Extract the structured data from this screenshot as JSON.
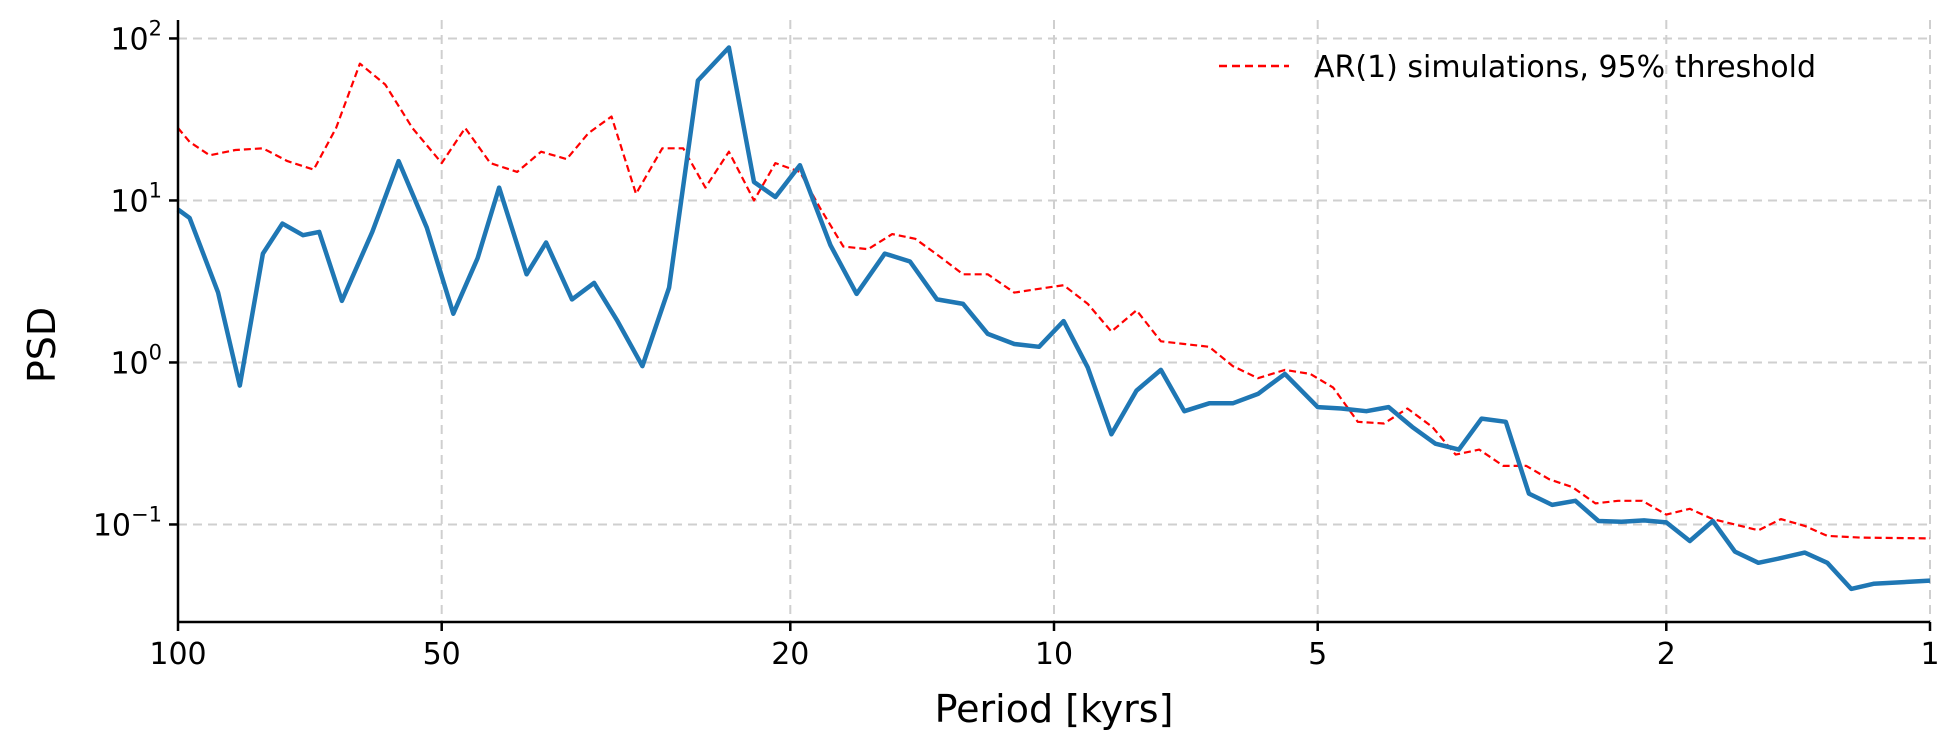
{
  "chart_data": {
    "type": "line",
    "xlabel": "Period [kyrs]",
    "ylabel": "PSD",
    "x_scale": "log",
    "x_reversed": true,
    "y_scale": "log",
    "xlim": [
      100,
      1
    ],
    "ylim": [
      0.025,
      130
    ],
    "x_ticks": [
      {
        "value": 100,
        "label": "100"
      },
      {
        "value": 50,
        "label": "50"
      },
      {
        "value": 20,
        "label": "20"
      },
      {
        "value": 10,
        "label": "10"
      },
      {
        "value": 5,
        "label": "5"
      },
      {
        "value": 2,
        "label": "2"
      },
      {
        "value": 1,
        "label": "1"
      }
    ],
    "y_ticks": [
      {
        "value": 100,
        "base": "10",
        "exp": "2"
      },
      {
        "value": 10,
        "base": "10",
        "exp": "1"
      },
      {
        "value": 1,
        "base": "10",
        "exp": "0"
      },
      {
        "value": 0.1,
        "base": "10",
        "exp": "−1"
      }
    ],
    "grid": true,
    "legend_position": "top-right",
    "series": [
      {
        "key": "psd",
        "color": "#1f77b4",
        "style": "solid",
        "points": [
          [
            100,
            8.8
          ],
          [
            97,
            7.8
          ],
          [
            90,
            2.7
          ],
          [
            85,
            0.72
          ],
          [
            80,
            4.7
          ],
          [
            76,
            7.2
          ],
          [
            72,
            6.1
          ],
          [
            69,
            6.4
          ],
          [
            65,
            2.4
          ],
          [
            60,
            6.4
          ],
          [
            56,
            17.5
          ],
          [
            52,
            6.8
          ],
          [
            48.5,
            2.0
          ],
          [
            45.5,
            4.4
          ],
          [
            43,
            12.0
          ],
          [
            40,
            3.5
          ],
          [
            38,
            5.5
          ],
          [
            35.5,
            2.45
          ],
          [
            33.5,
            3.1
          ],
          [
            31.5,
            1.8
          ],
          [
            29.5,
            0.95
          ],
          [
            27.5,
            2.9
          ],
          [
            25.5,
            55
          ],
          [
            23.5,
            88
          ],
          [
            22,
            13
          ],
          [
            20.8,
            10.5
          ],
          [
            19.5,
            16.5
          ],
          [
            18,
            5.3
          ],
          [
            16.8,
            2.65
          ],
          [
            15.6,
            4.7
          ],
          [
            14.6,
            4.2
          ],
          [
            13.6,
            2.45
          ],
          [
            12.7,
            2.3
          ],
          [
            11.9,
            1.5
          ],
          [
            11.1,
            1.3
          ],
          [
            10.4,
            1.25
          ],
          [
            9.75,
            1.8
          ],
          [
            9.15,
            0.93
          ],
          [
            8.6,
            0.36
          ],
          [
            8.05,
            0.67
          ],
          [
            7.55,
            0.9
          ],
          [
            7.1,
            0.5
          ],
          [
            6.65,
            0.56
          ],
          [
            6.25,
            0.56
          ],
          [
            5.85,
            0.64
          ],
          [
            5.45,
            0.85
          ],
          [
            5.0,
            0.53
          ],
          [
            4.7,
            0.52
          ],
          [
            4.4,
            0.5
          ],
          [
            4.15,
            0.53
          ],
          [
            3.9,
            0.4
          ],
          [
            3.67,
            0.315
          ],
          [
            3.45,
            0.29
          ],
          [
            3.25,
            0.45
          ],
          [
            3.05,
            0.43
          ],
          [
            2.87,
            0.155
          ],
          [
            2.7,
            0.132
          ],
          [
            2.54,
            0.14
          ],
          [
            2.39,
            0.105
          ],
          [
            2.25,
            0.104
          ],
          [
            2.12,
            0.106
          ],
          [
            2.0,
            0.103
          ],
          [
            1.88,
            0.079
          ],
          [
            1.77,
            0.105
          ],
          [
            1.67,
            0.068
          ],
          [
            1.57,
            0.058
          ],
          [
            1.48,
            0.062
          ],
          [
            1.39,
            0.067
          ],
          [
            1.31,
            0.058
          ],
          [
            1.23,
            0.04
          ],
          [
            1.16,
            0.043
          ],
          [
            1.0,
            0.045
          ]
        ]
      },
      {
        "key": "ar1",
        "name": "AR(1) simulations, 95% threshold",
        "color": "#ff0000",
        "style": "dashed",
        "points": [
          [
            100,
            28
          ],
          [
            97,
            23
          ],
          [
            92,
            19
          ],
          [
            86,
            20.5
          ],
          [
            80,
            21
          ],
          [
            75,
            17.5
          ],
          [
            70,
            15.5
          ],
          [
            66,
            28
          ],
          [
            62,
            70
          ],
          [
            58,
            52
          ],
          [
            54,
            28
          ],
          [
            50,
            17
          ],
          [
            47,
            28
          ],
          [
            44,
            17
          ],
          [
            41,
            15
          ],
          [
            38.5,
            20
          ],
          [
            36,
            18
          ],
          [
            34,
            26
          ],
          [
            32,
            33
          ],
          [
            30,
            11
          ],
          [
            28,
            21
          ],
          [
            26.5,
            21
          ],
          [
            25,
            12
          ],
          [
            23.5,
            20
          ],
          [
            22,
            10
          ],
          [
            20.8,
            17
          ],
          [
            19.5,
            15
          ],
          [
            18.5,
            9
          ],
          [
            17.4,
            5.2
          ],
          [
            16.3,
            5
          ],
          [
            15.3,
            6.2
          ],
          [
            14.4,
            5.8
          ],
          [
            13.5,
            4.5
          ],
          [
            12.7,
            3.5
          ],
          [
            11.9,
            3.5
          ],
          [
            11.1,
            2.7
          ],
          [
            10.4,
            2.85
          ],
          [
            9.75,
            3.0
          ],
          [
            9.15,
            2.3
          ],
          [
            8.6,
            1.55
          ],
          [
            8.05,
            2.1
          ],
          [
            7.55,
            1.35
          ],
          [
            7.1,
            1.3
          ],
          [
            6.65,
            1.25
          ],
          [
            6.25,
            0.95
          ],
          [
            5.85,
            0.8
          ],
          [
            5.45,
            0.9
          ],
          [
            5.1,
            0.85
          ],
          [
            4.8,
            0.7
          ],
          [
            4.5,
            0.43
          ],
          [
            4.2,
            0.42
          ],
          [
            3.95,
            0.52
          ],
          [
            3.7,
            0.4
          ],
          [
            3.48,
            0.27
          ],
          [
            3.27,
            0.29
          ],
          [
            3.07,
            0.23
          ],
          [
            2.89,
            0.23
          ],
          [
            2.72,
            0.19
          ],
          [
            2.56,
            0.17
          ],
          [
            2.41,
            0.135
          ],
          [
            2.27,
            0.14
          ],
          [
            2.13,
            0.14
          ],
          [
            2.0,
            0.115
          ],
          [
            1.88,
            0.125
          ],
          [
            1.77,
            0.108
          ],
          [
            1.67,
            0.1
          ],
          [
            1.57,
            0.092
          ],
          [
            1.48,
            0.108
          ],
          [
            1.39,
            0.098
          ],
          [
            1.31,
            0.085
          ],
          [
            1.2,
            0.083
          ],
          [
            1.0,
            0.082
          ]
        ]
      }
    ]
  }
}
